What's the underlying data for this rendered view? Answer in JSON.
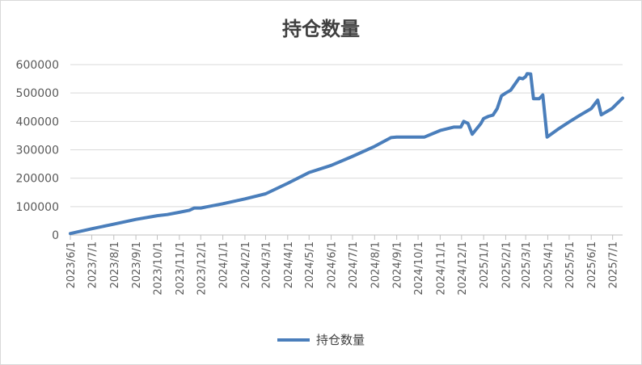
{
  "chart_data": {
    "type": "line",
    "title": "持仓数量",
    "xlabel": "",
    "ylabel": "",
    "ylim": [
      0,
      600000
    ],
    "yticks": [
      "0",
      "100000",
      "200000",
      "300000",
      "400000",
      "500000",
      "600000"
    ],
    "x_start": "2023/6/1",
    "x_end": "2025/7/15",
    "xticks": [
      "2023/6/1",
      "2023/7/1",
      "2023/8/1",
      "2023/9/1",
      "2023/10/1",
      "2023/11/1",
      "2023/12/1",
      "2024/1/1",
      "2024/2/1",
      "2024/3/1",
      "2024/4/1",
      "2024/5/1",
      "2024/6/1",
      "2024/7/1",
      "2024/8/1",
      "2024/9/1",
      "2024/10/1",
      "2024/11/1",
      "2024/12/1",
      "2025/1/1",
      "2025/2/1",
      "2025/3/1",
      "2025/4/1",
      "2025/5/1",
      "2025/6/1",
      "2025/7/1"
    ],
    "grid": true,
    "legend_position": "bottom",
    "series": [
      {
        "name": "持仓数量",
        "color": "#4a7ebb",
        "points": [
          [
            "2023/6/1",
            5000
          ],
          [
            "2023/7/1",
            22000
          ],
          [
            "2023/8/1",
            38000
          ],
          [
            "2023/9/1",
            55000
          ],
          [
            "2023/10/1",
            68000
          ],
          [
            "2023/10/15",
            72000
          ],
          [
            "2023/11/1",
            80000
          ],
          [
            "2023/11/15",
            87000
          ],
          [
            "2023/11/22",
            95000
          ],
          [
            "2023/12/1",
            95000
          ],
          [
            "2024/1/1",
            110000
          ],
          [
            "2024/2/1",
            127000
          ],
          [
            "2024/3/1",
            145000
          ],
          [
            "2024/4/1",
            182000
          ],
          [
            "2024/5/1",
            220000
          ],
          [
            "2024/6/1",
            245000
          ],
          [
            "2024/7/1",
            277000
          ],
          [
            "2024/8/1",
            312000
          ],
          [
            "2024/8/24",
            343000
          ],
          [
            "2024/9/1",
            345000
          ],
          [
            "2024/10/1",
            345000
          ],
          [
            "2024/10/10",
            345000
          ],
          [
            "2024/11/1",
            368000
          ],
          [
            "2024/11/20",
            380000
          ],
          [
            "2024/11/30",
            380000
          ],
          [
            "2024/12/4",
            400000
          ],
          [
            "2024/12/10",
            393000
          ],
          [
            "2024/12/16",
            355000
          ],
          [
            "2024/12/28",
            392000
          ],
          [
            "2025/1/1",
            410000
          ],
          [
            "2025/1/8",
            418000
          ],
          [
            "2025/1/14",
            422000
          ],
          [
            "2025/1/20",
            445000
          ],
          [
            "2025/1/26",
            490000
          ],
          [
            "2025/2/1",
            500000
          ],
          [
            "2025/2/8",
            510000
          ],
          [
            "2025/2/20",
            553000
          ],
          [
            "2025/2/25",
            550000
          ],
          [
            "2025/3/1",
            558000
          ],
          [
            "2025/3/3",
            568000
          ],
          [
            "2025/3/8",
            567000
          ],
          [
            "2025/3/12",
            480000
          ],
          [
            "2025/3/20",
            480000
          ],
          [
            "2025/3/25",
            493000
          ],
          [
            "2025/3/31",
            345000
          ],
          [
            "2025/4/15",
            372000
          ],
          [
            "2025/5/1",
            398000
          ],
          [
            "2025/5/15",
            420000
          ],
          [
            "2025/6/1",
            445000
          ],
          [
            "2025/6/10",
            475000
          ],
          [
            "2025/6/15",
            423000
          ],
          [
            "2025/6/30",
            445000
          ],
          [
            "2025/7/15",
            482000
          ]
        ]
      }
    ]
  }
}
